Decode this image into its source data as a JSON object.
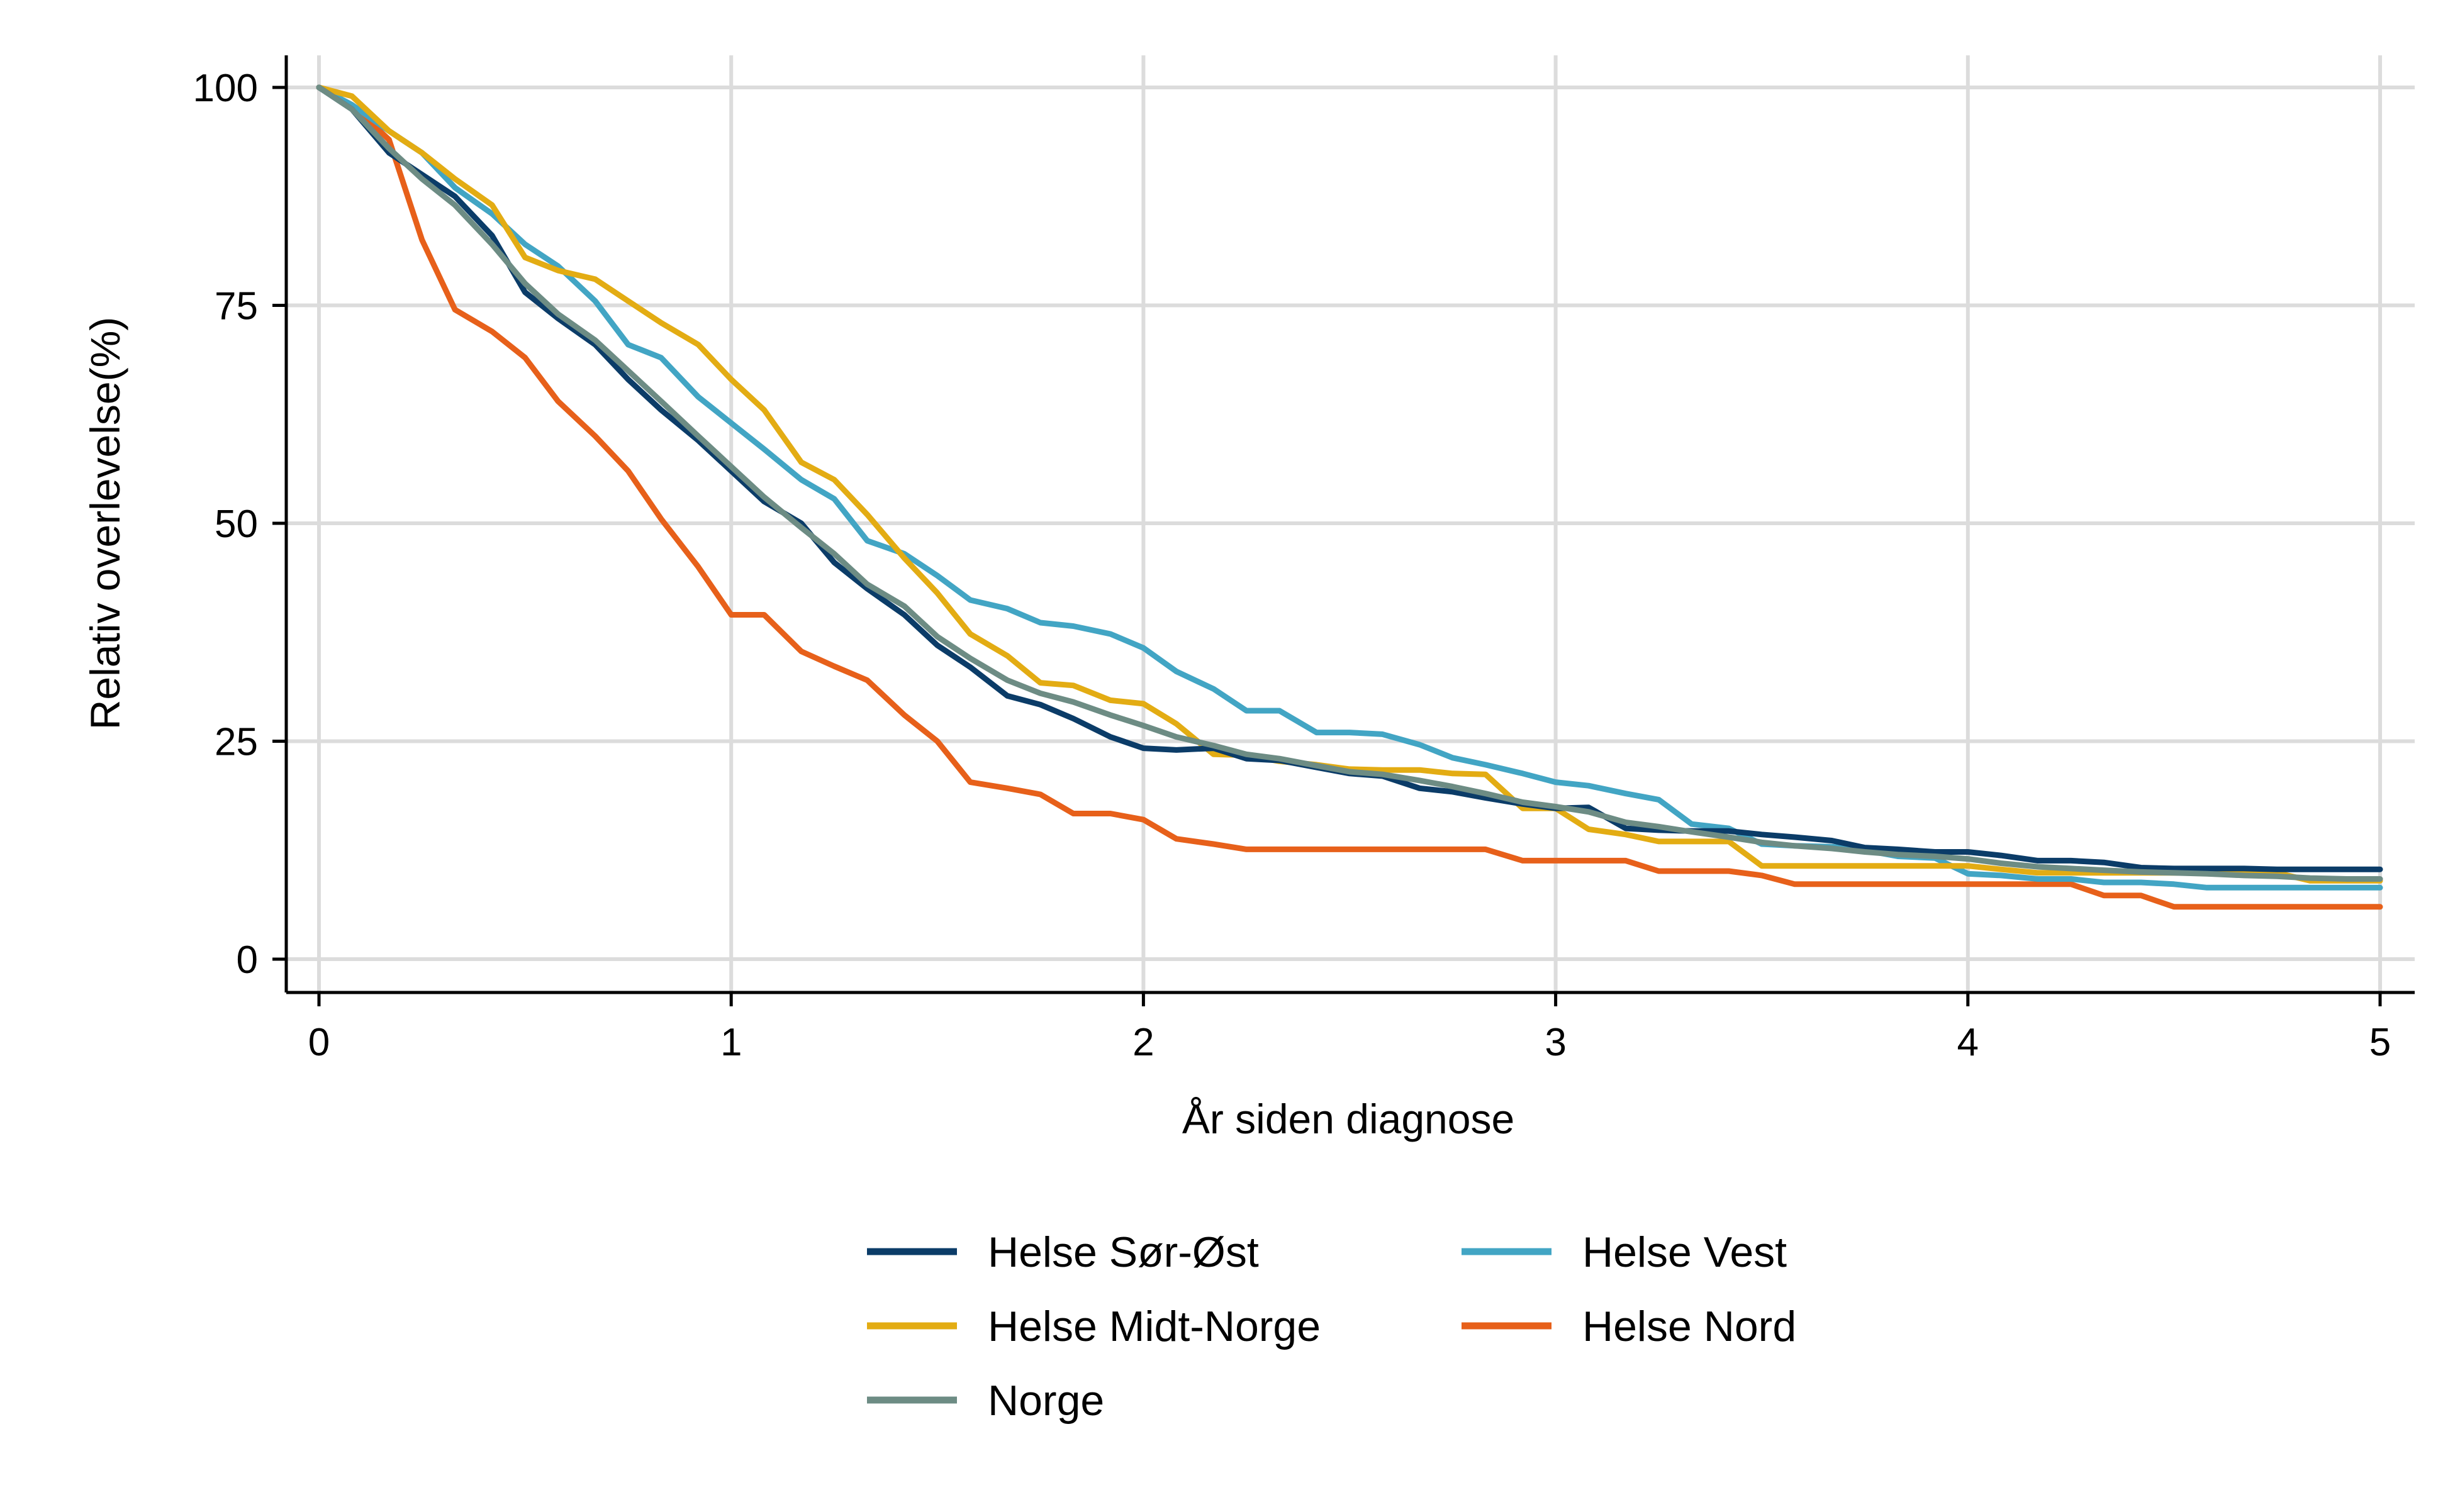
{
  "chart_data": {
    "type": "line",
    "xlabel": "År siden diagnose",
    "ylabel": "Relativ overlevelse(%)",
    "xlim": [
      0,
      5
    ],
    "ylim": [
      0,
      100
    ],
    "xticks": [
      "0",
      "1",
      "2",
      "3",
      "4",
      "5"
    ],
    "yticks": [
      "0",
      "25",
      "50",
      "75",
      "100"
    ],
    "grid": true,
    "legend_position": "bottom",
    "series": [
      {
        "name": "Helse Sør-Øst",
        "color": "#0b3c68",
        "points": [
          [
            0,
            100
          ],
          [
            0.08,
            97.5
          ],
          [
            0.17,
            92.5
          ],
          [
            0.25,
            90
          ],
          [
            0.33,
            87.5
          ],
          [
            0.42,
            83
          ],
          [
            0.5,
            76.5
          ],
          [
            0.58,
            73.5
          ],
          [
            0.67,
            70.5
          ],
          [
            0.75,
            66.5
          ],
          [
            0.83,
            63
          ],
          [
            0.92,
            59.5
          ],
          [
            1.0,
            56
          ],
          [
            1.08,
            52.5
          ],
          [
            1.17,
            50
          ],
          [
            1.25,
            45.5
          ],
          [
            1.33,
            42.5
          ],
          [
            1.42,
            39.5
          ],
          [
            1.5,
            36
          ],
          [
            1.58,
            33.5
          ],
          [
            1.67,
            30.2
          ],
          [
            1.75,
            29.2
          ],
          [
            1.83,
            27.6
          ],
          [
            1.92,
            25.5
          ],
          [
            2.0,
            24.2
          ],
          [
            2.08,
            24
          ],
          [
            2.17,
            24.2
          ],
          [
            2.25,
            23
          ],
          [
            2.33,
            22.8
          ],
          [
            2.42,
            22
          ],
          [
            2.5,
            21.3
          ],
          [
            2.58,
            21
          ],
          [
            2.67,
            19.6
          ],
          [
            2.75,
            19.2
          ],
          [
            2.83,
            18.5
          ],
          [
            2.92,
            17.8
          ],
          [
            3.0,
            17.3
          ],
          [
            3.08,
            17.4
          ],
          [
            3.17,
            15
          ],
          [
            3.25,
            14.8
          ],
          [
            3.33,
            14.7
          ],
          [
            3.42,
            14.7
          ],
          [
            3.5,
            14.3
          ],
          [
            3.58,
            14
          ],
          [
            3.67,
            13.6
          ],
          [
            3.75,
            12.8
          ],
          [
            3.83,
            12.6
          ],
          [
            3.92,
            12.3
          ],
          [
            4.0,
            12.3
          ],
          [
            4.08,
            11.9
          ],
          [
            4.17,
            11.3
          ],
          [
            4.25,
            11.3
          ],
          [
            4.33,
            11.1
          ],
          [
            4.42,
            10.5
          ],
          [
            4.5,
            10.4
          ],
          [
            4.58,
            10.4
          ],
          [
            4.67,
            10.4
          ],
          [
            4.75,
            10.3
          ],
          [
            4.83,
            10.3
          ],
          [
            4.92,
            10.3
          ],
          [
            5.0,
            10.3
          ]
        ]
      },
      {
        "name": "Helse Midt-Norge",
        "color": "#e3ac13",
        "points": [
          [
            0,
            100
          ],
          [
            0.08,
            99
          ],
          [
            0.17,
            95
          ],
          [
            0.25,
            92.5
          ],
          [
            0.33,
            89.5
          ],
          [
            0.42,
            86.5
          ],
          [
            0.5,
            80.5
          ],
          [
            0.58,
            79
          ],
          [
            0.67,
            78
          ],
          [
            0.75,
            75.5
          ],
          [
            0.83,
            73
          ],
          [
            0.92,
            70.5
          ],
          [
            1.0,
            66.5
          ],
          [
            1.08,
            63
          ],
          [
            1.17,
            57
          ],
          [
            1.25,
            55
          ],
          [
            1.33,
            51
          ],
          [
            1.42,
            46
          ],
          [
            1.5,
            42
          ],
          [
            1.58,
            37.3
          ],
          [
            1.67,
            34.8
          ],
          [
            1.75,
            31.7
          ],
          [
            1.83,
            31.4
          ],
          [
            1.92,
            29.7
          ],
          [
            2.0,
            29.3
          ],
          [
            2.08,
            27
          ],
          [
            2.17,
            23.5
          ],
          [
            2.25,
            23.4
          ],
          [
            2.33,
            22.7
          ],
          [
            2.42,
            22.3
          ],
          [
            2.5,
            21.8
          ],
          [
            2.58,
            21.7
          ],
          [
            2.67,
            21.7
          ],
          [
            2.75,
            21.3
          ],
          [
            2.83,
            21.2
          ],
          [
            2.92,
            17.3
          ],
          [
            3.0,
            17.3
          ],
          [
            3.08,
            14.9
          ],
          [
            3.17,
            14.3
          ],
          [
            3.25,
            13.5
          ],
          [
            3.33,
            13.5
          ],
          [
            3.42,
            13.5
          ],
          [
            3.5,
            10.7
          ],
          [
            3.58,
            10.7
          ],
          [
            3.67,
            10.7
          ],
          [
            3.75,
            10.7
          ],
          [
            3.83,
            10.7
          ],
          [
            3.92,
            10.7
          ],
          [
            4.0,
            10.7
          ],
          [
            4.08,
            10.3
          ],
          [
            4.17,
            9.9
          ],
          [
            4.25,
            9.9
          ],
          [
            4.33,
            9.9
          ],
          [
            4.42,
            9.9
          ],
          [
            4.5,
            9.9
          ],
          [
            4.58,
            9.9
          ],
          [
            4.67,
            9.9
          ],
          [
            4.75,
            9.9
          ],
          [
            4.83,
            9
          ],
          [
            4.92,
            9
          ],
          [
            5.0,
            9
          ]
        ]
      },
      {
        "name": "Norge",
        "color": "#6d8c84",
        "points": [
          [
            0,
            100
          ],
          [
            0.08,
            97.5
          ],
          [
            0.17,
            93
          ],
          [
            0.25,
            89.5
          ],
          [
            0.33,
            86.5
          ],
          [
            0.42,
            82
          ],
          [
            0.5,
            77.5
          ],
          [
            0.58,
            74
          ],
          [
            0.67,
            71
          ],
          [
            0.75,
            67.5
          ],
          [
            0.83,
            64
          ],
          [
            0.92,
            60
          ],
          [
            1.0,
            56.5
          ],
          [
            1.08,
            53
          ],
          [
            1.17,
            49.5
          ],
          [
            1.25,
            46.5
          ],
          [
            1.33,
            43
          ],
          [
            1.42,
            40.5
          ],
          [
            1.5,
            37
          ],
          [
            1.58,
            34.5
          ],
          [
            1.67,
            32
          ],
          [
            1.75,
            30.5
          ],
          [
            1.83,
            29.5
          ],
          [
            1.92,
            28
          ],
          [
            2.0,
            26.8
          ],
          [
            2.08,
            25.5
          ],
          [
            2.17,
            24.5
          ],
          [
            2.25,
            23.5
          ],
          [
            2.33,
            23
          ],
          [
            2.42,
            22.2
          ],
          [
            2.5,
            21.5
          ],
          [
            2.58,
            21.2
          ],
          [
            2.67,
            20.5
          ],
          [
            2.75,
            19.8
          ],
          [
            2.83,
            19
          ],
          [
            2.92,
            18
          ],
          [
            3.0,
            17.5
          ],
          [
            3.08,
            16.9
          ],
          [
            3.17,
            15.7
          ],
          [
            3.25,
            15.2
          ],
          [
            3.33,
            14.6
          ],
          [
            3.42,
            14
          ],
          [
            3.5,
            13.4
          ],
          [
            3.58,
            13
          ],
          [
            3.67,
            12.7
          ],
          [
            3.75,
            12.3
          ],
          [
            3.83,
            12
          ],
          [
            3.92,
            11.8
          ],
          [
            4.0,
            11.5
          ],
          [
            4.08,
            11
          ],
          [
            4.17,
            10.6
          ],
          [
            4.25,
            10.4
          ],
          [
            4.33,
            10.2
          ],
          [
            4.42,
            10
          ],
          [
            4.5,
            9.9
          ],
          [
            4.58,
            9.8
          ],
          [
            4.67,
            9.6
          ],
          [
            4.75,
            9.5
          ],
          [
            4.83,
            9.3
          ],
          [
            4.92,
            9.2
          ],
          [
            5.0,
            9.2
          ]
        ]
      },
      {
        "name": "Helse Vest",
        "color": "#42a5c4",
        "points": [
          [
            0,
            100
          ],
          [
            0.08,
            98
          ],
          [
            0.17,
            95
          ],
          [
            0.25,
            92.5
          ],
          [
            0.33,
            88.5
          ],
          [
            0.42,
            85.5
          ],
          [
            0.5,
            82
          ],
          [
            0.58,
            79.5
          ],
          [
            0.67,
            75.5
          ],
          [
            0.75,
            70.5
          ],
          [
            0.83,
            69
          ],
          [
            0.92,
            64.5
          ],
          [
            1.0,
            61.5
          ],
          [
            1.08,
            58.5
          ],
          [
            1.17,
            55
          ],
          [
            1.25,
            52.8
          ],
          [
            1.33,
            48
          ],
          [
            1.42,
            46.5
          ],
          [
            1.5,
            44
          ],
          [
            1.58,
            41.2
          ],
          [
            1.67,
            40.2
          ],
          [
            1.75,
            38.6
          ],
          [
            1.83,
            38.2
          ],
          [
            1.92,
            37.3
          ],
          [
            2.0,
            35.7
          ],
          [
            2.08,
            33
          ],
          [
            2.17,
            31
          ],
          [
            2.25,
            28.5
          ],
          [
            2.33,
            28.5
          ],
          [
            2.42,
            26
          ],
          [
            2.5,
            26
          ],
          [
            2.58,
            25.8
          ],
          [
            2.67,
            24.6
          ],
          [
            2.75,
            23.1
          ],
          [
            2.83,
            22.3
          ],
          [
            2.92,
            21.3
          ],
          [
            3.0,
            20.3
          ],
          [
            3.08,
            19.9
          ],
          [
            3.17,
            19
          ],
          [
            3.25,
            18.3
          ],
          [
            3.33,
            15.5
          ],
          [
            3.42,
            15
          ],
          [
            3.5,
            13.2
          ],
          [
            3.58,
            13
          ],
          [
            3.67,
            12.9
          ],
          [
            3.75,
            12.5
          ],
          [
            3.83,
            11.8
          ],
          [
            3.92,
            11.6
          ],
          [
            4.0,
            9.8
          ],
          [
            4.08,
            9.6
          ],
          [
            4.17,
            9.2
          ],
          [
            4.25,
            9.2
          ],
          [
            4.33,
            8.8
          ],
          [
            4.42,
            8.8
          ],
          [
            4.5,
            8.6
          ],
          [
            4.58,
            8.2
          ],
          [
            4.67,
            8.2
          ],
          [
            4.75,
            8.2
          ],
          [
            4.83,
            8.2
          ],
          [
            4.92,
            8.2
          ],
          [
            5.0,
            8.2
          ]
        ]
      },
      {
        "name": "Helse Nord",
        "color": "#e7601a",
        "points": [
          [
            0,
            100
          ],
          [
            0.08,
            98
          ],
          [
            0.17,
            94
          ],
          [
            0.25,
            82.5
          ],
          [
            0.33,
            74.5
          ],
          [
            0.42,
            72
          ],
          [
            0.5,
            69
          ],
          [
            0.58,
            64
          ],
          [
            0.67,
            60
          ],
          [
            0.75,
            56
          ],
          [
            0.83,
            50.5
          ],
          [
            0.92,
            45
          ],
          [
            1.0,
            39.5
          ],
          [
            1.08,
            39.5
          ],
          [
            1.17,
            35.3
          ],
          [
            1.25,
            33.6
          ],
          [
            1.33,
            32
          ],
          [
            1.42,
            28
          ],
          [
            1.5,
            25
          ],
          [
            1.58,
            20.3
          ],
          [
            1.67,
            19.6
          ],
          [
            1.75,
            18.9
          ],
          [
            1.83,
            16.7
          ],
          [
            1.92,
            16.7
          ],
          [
            2.0,
            16
          ],
          [
            2.08,
            13.8
          ],
          [
            2.17,
            13.2
          ],
          [
            2.25,
            12.6
          ],
          [
            2.33,
            12.6
          ],
          [
            2.42,
            12.6
          ],
          [
            2.5,
            12.6
          ],
          [
            2.58,
            12.6
          ],
          [
            2.67,
            12.6
          ],
          [
            2.75,
            12.6
          ],
          [
            2.83,
            12.6
          ],
          [
            2.92,
            11.3
          ],
          [
            3.0,
            11.3
          ],
          [
            3.08,
            11.3
          ],
          [
            3.17,
            11.3
          ],
          [
            3.25,
            10.1
          ],
          [
            3.33,
            10.1
          ],
          [
            3.42,
            10.1
          ],
          [
            3.5,
            9.6
          ],
          [
            3.58,
            8.6
          ],
          [
            3.67,
            8.6
          ],
          [
            3.75,
            8.6
          ],
          [
            3.83,
            8.6
          ],
          [
            3.92,
            8.6
          ],
          [
            4.0,
            8.6
          ],
          [
            4.08,
            8.6
          ],
          [
            4.17,
            8.6
          ],
          [
            4.25,
            8.6
          ],
          [
            4.33,
            7.3
          ],
          [
            4.42,
            7.3
          ],
          [
            4.5,
            6
          ],
          [
            4.58,
            6
          ],
          [
            4.67,
            6
          ],
          [
            4.75,
            6
          ],
          [
            4.83,
            6
          ],
          [
            4.92,
            6
          ],
          [
            5.0,
            6
          ]
        ]
      }
    ],
    "legend_order": [
      "Helse Sør-Øst",
      "Helse Vest",
      "Helse Midt-Norge",
      "Helse Nord",
      "Norge"
    ]
  }
}
